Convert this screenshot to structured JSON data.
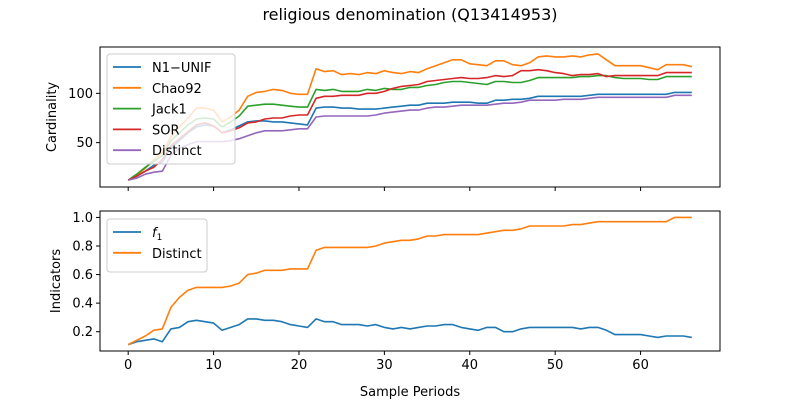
{
  "figure": {
    "title": "religious denomination (Q13414953)",
    "xlabel": "Sample Periods"
  },
  "chart_data": [
    {
      "type": "line",
      "ylabel": "Cardinality",
      "xlim": [
        -3.3,
        69.3
      ],
      "ylim": [
        5,
        147
      ],
      "xticks": [
        0,
        10,
        20,
        30,
        40,
        50,
        60
      ],
      "yticks": [
        50,
        100
      ],
      "legend": "top-left",
      "grid": false,
      "series": [
        {
          "name": "N1−UNIF",
          "color": "#1f77b4",
          "values": [
            12,
            16,
            21,
            27,
            30,
            45,
            52,
            60,
            66,
            68,
            67,
            60,
            63,
            67,
            71,
            72,
            72,
            71,
            71,
            70,
            69,
            68,
            85,
            86,
            86,
            85,
            85,
            84,
            84,
            84,
            85,
            86,
            87,
            88,
            88,
            90,
            90,
            90,
            91,
            91,
            91,
            90,
            90,
            93,
            93,
            94,
            94,
            95,
            97,
            97,
            97,
            97,
            97,
            97,
            98,
            99,
            99,
            99,
            99,
            99,
            99,
            99,
            99,
            99,
            101,
            101,
            101
          ]
        },
        {
          "name": "Chao92",
          "color": "#ff7f0e",
          "values": [
            12,
            17,
            24,
            33,
            40,
            56,
            66,
            75,
            85,
            85,
            83,
            71,
            76,
            83,
            97,
            101,
            102,
            104,
            103,
            100,
            99,
            99,
            125,
            122,
            123,
            119,
            120,
            119,
            121,
            120,
            123,
            121,
            120,
            122,
            121,
            125,
            128,
            131,
            134,
            134,
            130,
            129,
            128,
            133,
            133,
            129,
            128,
            131,
            137,
            138,
            137,
            137,
            138,
            137,
            139,
            140,
            134,
            128,
            128,
            128,
            128,
            126,
            124,
            129,
            129,
            129,
            127
          ]
        },
        {
          "name": "Jack1",
          "color": "#2ca02c",
          "values": [
            12,
            18,
            25,
            31,
            37,
            52,
            60,
            68,
            74,
            75,
            74,
            66,
            71,
            77,
            87,
            88,
            89,
            89,
            88,
            87,
            86,
            86,
            104,
            103,
            104,
            102,
            102,
            102,
            104,
            103,
            105,
            104,
            104,
            106,
            106,
            108,
            109,
            111,
            112,
            112,
            111,
            110,
            109,
            112,
            112,
            111,
            111,
            113,
            116,
            116,
            116,
            116,
            116,
            117,
            117,
            118,
            118,
            116,
            115,
            115,
            115,
            114,
            114,
            117,
            117,
            117,
            117
          ]
        },
        {
          "name": "SOR",
          "color": "#d62728",
          "values": [
            12,
            16,
            21,
            25,
            33,
            47,
            54,
            61,
            68,
            70,
            67,
            60,
            62,
            65,
            70,
            71,
            74,
            75,
            75,
            77,
            78,
            78,
            95,
            97,
            97,
            98,
            98,
            98,
            100,
            100,
            102,
            105,
            107,
            108,
            109,
            112,
            113,
            114,
            115,
            116,
            115,
            115,
            116,
            118,
            117,
            118,
            123,
            123,
            124,
            123,
            121,
            120,
            118,
            119,
            119,
            120,
            117,
            118,
            118,
            118,
            118,
            118,
            118,
            121,
            121,
            121,
            121
          ]
        },
        {
          "name": "Distinct",
          "color": "#9467bd",
          "values": [
            12,
            14,
            18,
            20,
            21,
            37,
            44,
            48,
            51,
            51,
            51,
            51,
            52,
            54,
            57,
            60,
            62,
            62,
            62,
            63,
            64,
            64,
            76,
            77,
            77,
            77,
            77,
            77,
            77,
            78,
            80,
            81,
            82,
            83,
            83,
            85,
            86,
            86,
            87,
            88,
            88,
            88,
            88,
            89,
            90,
            90,
            91,
            93,
            93,
            93,
            93,
            94,
            94,
            94,
            95,
            96,
            96,
            96,
            96,
            96,
            96,
            96,
            96,
            96,
            98,
            98,
            98
          ]
        }
      ]
    },
    {
      "type": "line",
      "ylabel": "Indicators",
      "xlim": [
        -3.3,
        69.3
      ],
      "ylim": [
        0.065,
        1.045
      ],
      "xticks": [
        0,
        10,
        20,
        30,
        40,
        50,
        60
      ],
      "yticks": [
        0.2,
        0.4,
        0.6,
        0.8,
        1.0
      ],
      "ytick_labels": [
        "0.2",
        "0.4",
        "0.6",
        "0.8",
        "1.0"
      ],
      "legend": "top-left",
      "grid": false,
      "series": [
        {
          "name": "f1",
          "name_main": "f",
          "name_sub": "1",
          "color": "#1f77b4",
          "values": [
            0.11,
            0.13,
            0.14,
            0.15,
            0.13,
            0.22,
            0.23,
            0.27,
            0.28,
            0.27,
            0.26,
            0.21,
            0.23,
            0.25,
            0.29,
            0.29,
            0.28,
            0.28,
            0.27,
            0.25,
            0.24,
            0.23,
            0.29,
            0.27,
            0.27,
            0.25,
            0.25,
            0.25,
            0.24,
            0.25,
            0.23,
            0.22,
            0.23,
            0.22,
            0.23,
            0.24,
            0.24,
            0.25,
            0.25,
            0.23,
            0.22,
            0.21,
            0.23,
            0.23,
            0.2,
            0.2,
            0.22,
            0.23,
            0.23,
            0.23,
            0.23,
            0.23,
            0.23,
            0.22,
            0.23,
            0.23,
            0.21,
            0.18,
            0.18,
            0.18,
            0.18,
            0.17,
            0.16,
            0.17,
            0.17,
            0.17,
            0.16
          ]
        },
        {
          "name": "Distinct",
          "color": "#ff7f0e",
          "values": [
            0.11,
            0.14,
            0.17,
            0.21,
            0.22,
            0.37,
            0.44,
            0.49,
            0.51,
            0.51,
            0.51,
            0.51,
            0.52,
            0.54,
            0.6,
            0.61,
            0.63,
            0.63,
            0.63,
            0.64,
            0.64,
            0.64,
            0.77,
            0.79,
            0.79,
            0.79,
            0.79,
            0.79,
            0.79,
            0.8,
            0.82,
            0.83,
            0.84,
            0.84,
            0.85,
            0.87,
            0.87,
            0.88,
            0.88,
            0.88,
            0.88,
            0.88,
            0.89,
            0.9,
            0.91,
            0.91,
            0.92,
            0.94,
            0.94,
            0.94,
            0.94,
            0.94,
            0.95,
            0.95,
            0.96,
            0.97,
            0.97,
            0.97,
            0.97,
            0.97,
            0.97,
            0.97,
            0.97,
            0.97,
            1.0,
            1.0,
            1.0
          ]
        }
      ]
    }
  ]
}
